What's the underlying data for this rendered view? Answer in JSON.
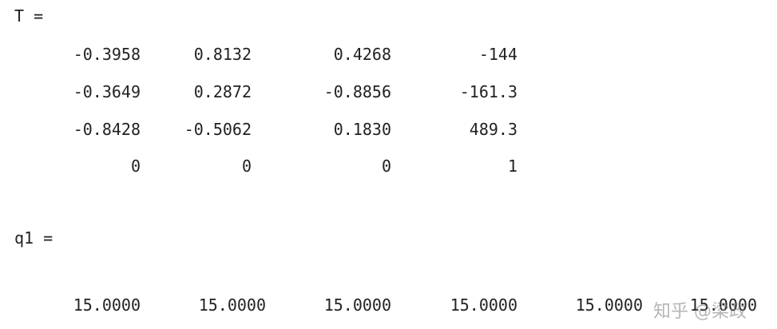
{
  "matrix_T": {
    "label": "T =",
    "rows": [
      [
        "-0.3958",
        "0.8132",
        "0.4268",
        "-144"
      ],
      [
        "-0.3649",
        "0.2872",
        "-0.8856",
        "-161.3"
      ],
      [
        "-0.8428",
        "-0.5062",
        "0.1830",
        "489.3"
      ],
      [
        "0",
        "0",
        "0",
        "1"
      ]
    ]
  },
  "vector_q1": {
    "label": "q1 =",
    "values": [
      "15.0000",
      "15.0000",
      "15.0000",
      "15.0000",
      "15.0000",
      "15.0000"
    ]
  },
  "watermark": {
    "text": "知乎 @梁政"
  }
}
